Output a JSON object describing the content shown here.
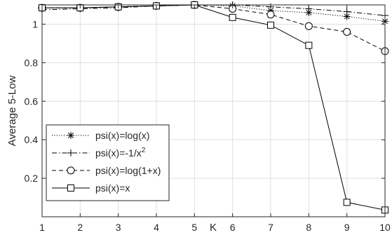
{
  "chart_data": {
    "type": "line",
    "xlabel": "K",
    "ylabel": "Average 5-Low",
    "xlim": [
      1,
      10
    ],
    "ylim": [
      0,
      1.1
    ],
    "x": [
      1,
      2,
      3,
      4,
      5,
      6,
      7,
      8,
      9,
      10
    ],
    "xticks": [
      "1",
      "2",
      "3",
      "4",
      "5",
      "6",
      "7",
      "8",
      "9",
      "10"
    ],
    "yticks": [
      {
        "value": 0.2,
        "label": "0.2"
      },
      {
        "value": 0.4,
        "label": "0.4"
      },
      {
        "value": 0.6,
        "label": "0.6"
      },
      {
        "value": 0.8,
        "label": "0.8"
      },
      {
        "value": 1.0,
        "label": "1"
      }
    ],
    "grid": true,
    "legend_position": "center-left",
    "series": [
      {
        "name": "psi(x)=log(x)",
        "line_style": "dotted",
        "marker": "asterisk",
        "color": "#000000",
        "values": [
          1.085,
          1.085,
          1.09,
          1.095,
          1.1,
          1.095,
          1.07,
          1.06,
          1.04,
          1.015
        ]
      },
      {
        "name_base": "psi(x)=-1/x",
        "name_superscript": "2",
        "line_style": "dashdot",
        "marker": "plus",
        "color": "#000000",
        "values": [
          1.075,
          1.08,
          1.085,
          1.095,
          1.1,
          1.1,
          1.09,
          1.08,
          1.065,
          1.045
        ]
      },
      {
        "name": "psi(x)=log(1+x)",
        "line_style": "dashed",
        "marker": "circle",
        "color": "#000000",
        "values": [
          1.085,
          1.085,
          1.09,
          1.095,
          1.1,
          1.08,
          1.05,
          0.99,
          0.96,
          0.86
        ]
      },
      {
        "name": "psi(x)=x",
        "line_style": "solid",
        "marker": "square",
        "color": "#000000",
        "values": [
          1.085,
          1.085,
          1.09,
          1.095,
          1.1,
          1.035,
          0.995,
          0.89,
          0.075,
          0.035
        ]
      }
    ]
  }
}
